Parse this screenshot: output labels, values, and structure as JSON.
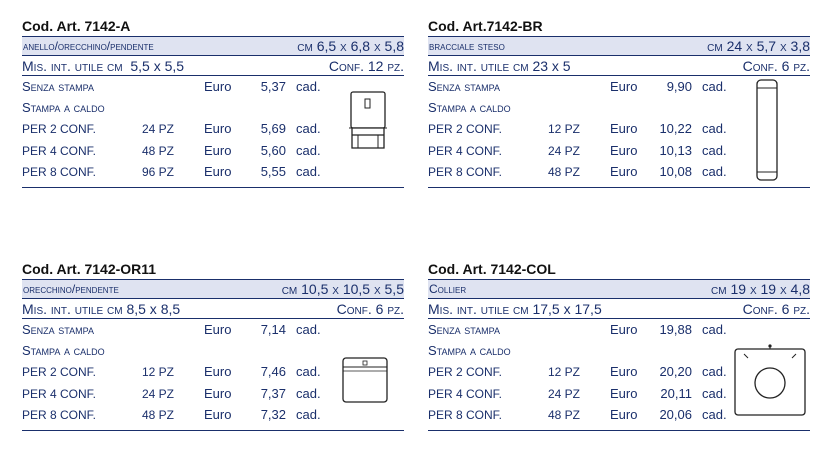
{
  "cards": [
    {
      "code": "Cod. Art. 7142-A",
      "description": "anello/orecchino/pendente",
      "dimensions": "cm 6,5 x 6,8 x 5,8",
      "mis_label": "Mis. int. utile cm",
      "mis_value": "5,5 x 5,5",
      "conf": "Conf. 12 pz.",
      "senza": {
        "label": "Senza stampa",
        "currency": "Euro",
        "price": "5,37",
        "unit": "cad."
      },
      "stampa_label": "Stampa a caldo",
      "rows": [
        {
          "label": "PER 2 CONF.",
          "qty": "24 PZ",
          "currency": "Euro",
          "price": "5,69",
          "unit": "cad."
        },
        {
          "label": "PER 4 CONF.",
          "qty": "48 PZ",
          "currency": "Euro",
          "price": "5,60",
          "unit": "cad."
        },
        {
          "label": "PER 8 CONF.",
          "qty": "96 PZ",
          "currency": "Euro",
          "price": "5,55",
          "unit": "cad."
        }
      ]
    },
    {
      "code": "Cod. Art.7142-BR",
      "description": "bracciale steso",
      "dimensions": "cm 24 x 5,7 x 3,8",
      "mis_label": "Mis. int. utile cm",
      "mis_value": "23 x 5",
      "conf": "Conf. 6 pz.",
      "senza": {
        "label": "Senza stampa",
        "currency": "Euro",
        "price": "9,90",
        "unit": "cad."
      },
      "stampa_label": "Stampa a caldo",
      "rows": [
        {
          "label": "PER 2 CONF.",
          "qty": "12 PZ",
          "currency": "Euro",
          "price": "10,22",
          "unit": "cad."
        },
        {
          "label": "PER 4 CONF.",
          "qty": "24 PZ",
          "currency": "Euro",
          "price": "10,13",
          "unit": "cad."
        },
        {
          "label": "PER 8 CONF.",
          "qty": "48 PZ",
          "currency": "Euro",
          "price": "10,08",
          "unit": "cad."
        }
      ]
    },
    {
      "code": "Cod. Art. 7142-OR11",
      "description": "orecchino/pendente",
      "dimensions": "cm 10,5 x 10,5 x 5,5",
      "mis_label": "Mis. int. utile cm",
      "mis_value": "8,5 x 8,5",
      "conf": "Conf. 6 pz.",
      "senza": {
        "label": "Senza stampa",
        "currency": "Euro",
        "price": "7,14",
        "unit": "cad."
      },
      "stampa_label": "Stampa a caldo",
      "rows": [
        {
          "label": "PER 2 CONF.",
          "qty": "12 PZ",
          "currency": "Euro",
          "price": "7,46",
          "unit": "cad."
        },
        {
          "label": "PER 4 CONF.",
          "qty": "24 PZ",
          "currency": "Euro",
          "price": "7,37",
          "unit": "cad."
        },
        {
          "label": "PER 8 CONF.",
          "qty": "48 PZ",
          "currency": "Euro",
          "price": "7,32",
          "unit": "cad."
        }
      ]
    },
    {
      "code": "Cod. Art. 7142-COL",
      "description": "Collier",
      "dimensions": "cm 19 x 19 x 4,8",
      "mis_label": "Mis. int. utile cm",
      "mis_value": "17,5 x 17,5",
      "conf": "Conf. 6 pz.",
      "senza": {
        "label": "Senza stampa",
        "currency": "Euro",
        "price": "19,88",
        "unit": "cad."
      },
      "stampa_label": "Stampa a caldo",
      "rows": [
        {
          "label": "PER 2 CONF.",
          "qty": "12 PZ",
          "currency": "Euro",
          "price": "20,20",
          "unit": "cad."
        },
        {
          "label": "PER 4 CONF.",
          "qty": "24 PZ",
          "currency": "Euro",
          "price": "20,11",
          "unit": "cad."
        },
        {
          "label": "PER 8 CONF.",
          "qty": "48 PZ",
          "currency": "Euro",
          "price": "20,06",
          "unit": "cad."
        }
      ]
    }
  ],
  "colors": {
    "text": "#1a2f6b",
    "band": "#dfe3f1",
    "code": "#111111"
  },
  "icons": [
    "box-upright-icon",
    "bracelet-box-icon",
    "box-open-icon",
    "collier-board-icon"
  ]
}
